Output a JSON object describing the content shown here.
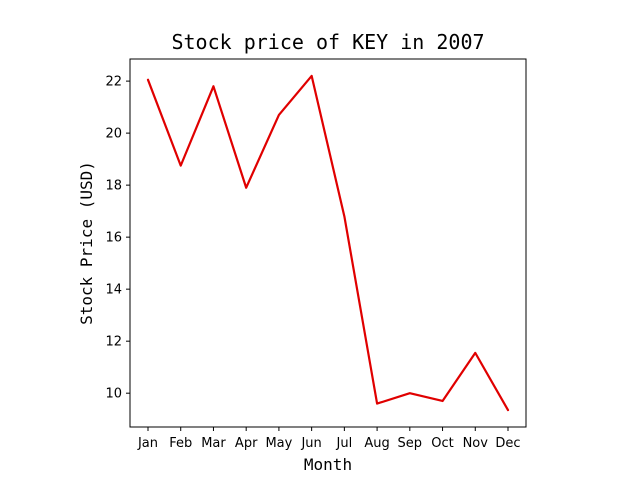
{
  "chart_data": {
    "type": "line",
    "title": "Stock price of KEY in 2007",
    "xlabel": "Month",
    "ylabel": "Stock Price (USD)",
    "categories": [
      "Jan",
      "Feb",
      "Mar",
      "Apr",
      "May",
      "Jun",
      "Jul",
      "Aug",
      "Sep",
      "Oct",
      "Nov",
      "Dec"
    ],
    "series": [
      {
        "values": [
          22.05,
          18.75,
          21.8,
          17.9,
          20.7,
          22.2,
          16.8,
          9.6,
          10.0,
          9.7,
          11.55,
          9.35
        ],
        "color": "#e00000"
      }
    ],
    "y_ticks": [
      10,
      12,
      14,
      16,
      18,
      20,
      22
    ],
    "ylim": [
      8.7,
      22.85
    ],
    "grid": false,
    "legend": "none"
  }
}
